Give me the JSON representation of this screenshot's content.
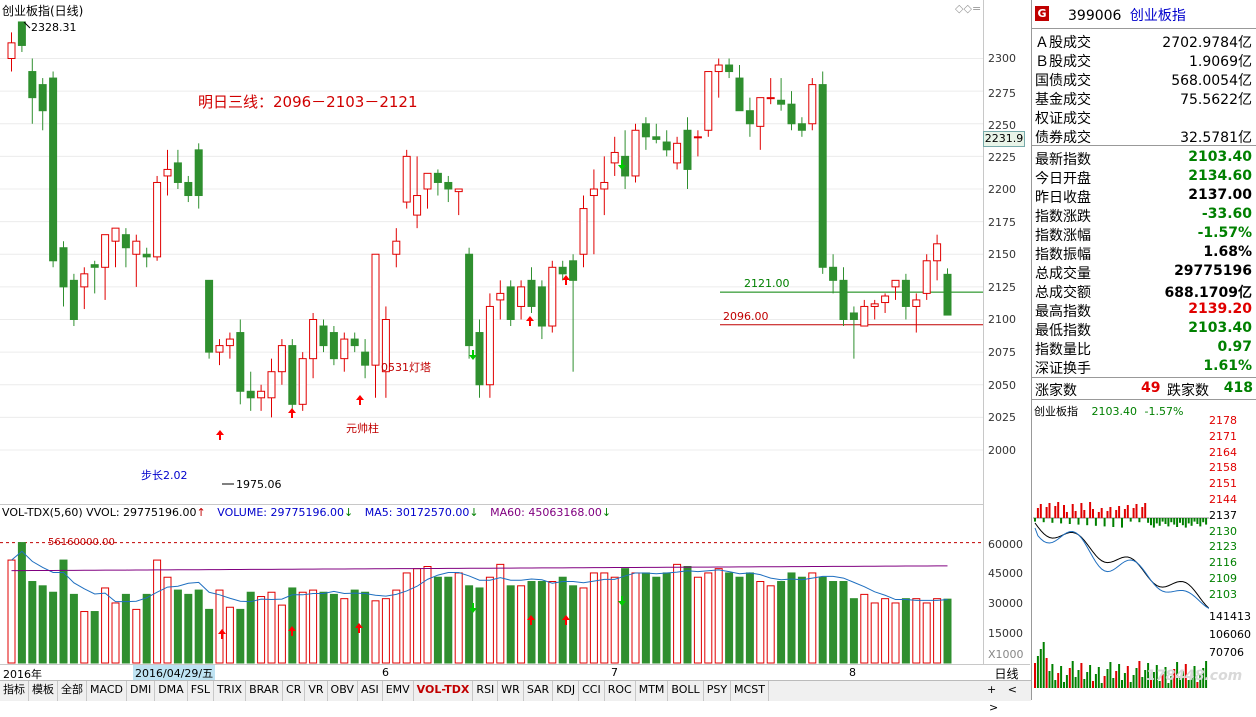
{
  "window": {
    "title": "创业板指(日线)",
    "controls": [
      "◇",
      "◇",
      "="
    ]
  },
  "main": {
    "price_axis_ticks": [
      "2300",
      "2275",
      "2250",
      "2225",
      "2200",
      "2175",
      "2150",
      "2125",
      "2100",
      "2075",
      "2050",
      "2025",
      "2000"
    ],
    "current_price_tag": "2231.9",
    "high_label": "2328.31",
    "low_label": "1975.06",
    "forecast_text": "明日三线：2096－2103－2121",
    "line_2121": "2121.00",
    "line_2096": "2096.00",
    "annotation_lamp": "0531灯塔",
    "annotation_pillar": "元帅柱",
    "step_text": "步长2.02"
  },
  "volume": {
    "header_label": "VOL-TDX(5,60) VVOL: 29775196.00",
    "header_volume": "VOLUME: 29775196.00",
    "header_ma5": "MA5: 30172570.00",
    "header_ma60": "MA60: 45063168.00",
    "level_label": "56160000.00",
    "axis_ticks": [
      "60000",
      "45000",
      "30000",
      "15000"
    ],
    "unit": "X1000",
    "colors": {
      "volume_label": "#0000cc",
      "ma5": "#0000cc",
      "ma60": "#800080"
    }
  },
  "date_axis": {
    "labels": [
      "2016年",
      "2016/04/29/五",
      "6",
      "7",
      "8"
    ],
    "period": "日线"
  },
  "toolbar": {
    "buttons": [
      "指标",
      "模板",
      "全部",
      "MACD",
      "DMI",
      "DMA",
      "FSL",
      "TRIX",
      "BRAR",
      "CR",
      "VR",
      "OBV",
      "ASI",
      "EMV",
      "VOL-TDX",
      "RSI",
      "WR",
      "SAR",
      "KDJ",
      "CCI",
      "ROC",
      "MTM",
      "BOLL",
      "PSY",
      "MCST"
    ],
    "active": "VOL-TDX",
    "nav": [
      "+",
      "<",
      ">"
    ]
  },
  "quote": {
    "badge": "G",
    "code": "399006",
    "name": "创业板指",
    "rows": [
      {
        "label": "Ａ股成交",
        "value": "2702.9784亿",
        "color": "#000"
      },
      {
        "label": "Ｂ股成交",
        "value": "1.9069亿",
        "color": "#000"
      },
      {
        "label": "国债成交",
        "value": "568.0054亿",
        "color": "#000"
      },
      {
        "label": "基金成交",
        "value": "75.5622亿",
        "color": "#000"
      },
      {
        "label": "权证成交",
        "value": "",
        "color": "#000"
      },
      {
        "label": "债券成交",
        "value": "32.5781亿",
        "color": "#000"
      },
      {
        "label": "最新指数",
        "value": "2103.40",
        "color": "#008000"
      },
      {
        "label": "今日开盘",
        "value": "2134.60",
        "color": "#008000"
      },
      {
        "label": "昨日收盘",
        "value": "2137.00",
        "color": "#000"
      },
      {
        "label": "指数涨跌",
        "value": "-33.60",
        "color": "#008000"
      },
      {
        "label": "指数涨幅",
        "value": "-1.57%",
        "color": "#008000"
      },
      {
        "label": "指数振幅",
        "value": "1.68%",
        "color": "#000"
      },
      {
        "label": "总成交量",
        "value": "29775196",
        "color": "#000"
      },
      {
        "label": "总成交额",
        "value": "688.1709亿",
        "color": "#000"
      },
      {
        "label": "最高指数",
        "value": "2139.20",
        "color": "#e00000"
      },
      {
        "label": "最低指数",
        "value": "2103.40",
        "color": "#008000"
      },
      {
        "label": "指数量比",
        "value": "0.97",
        "color": "#008000"
      },
      {
        "label": "深证换手",
        "value": "1.61%",
        "color": "#008000"
      }
    ],
    "breadth": {
      "up_label": "涨家数",
      "up": "49",
      "down_label": "跌家数",
      "down": "418"
    },
    "mini": {
      "name": "创业板指",
      "value": "2103.40",
      "pct": "-1.57%",
      "axis": [
        "2178",
        "2171",
        "2164",
        "2158",
        "2151",
        "2144",
        "2137",
        "2130",
        "2123",
        "2116",
        "2109",
        "2103"
      ],
      "vol_axis": [
        "141413",
        "106060",
        "70706"
      ]
    },
    "watermark": "178448.com"
  },
  "chart_data": {
    "type": "candlestick",
    "title": "创业板指(日线)",
    "ylim": [
      1975,
      2330
    ],
    "series": [
      {
        "name": "OHLC",
        "values": [
          [
            2300,
            2320,
            2290,
            2312
          ],
          [
            2328,
            2328,
            2305,
            2310
          ],
          [
            2290,
            2300,
            2250,
            2270
          ],
          [
            2280,
            2285,
            2245,
            2260
          ],
          [
            2285,
            2290,
            2140,
            2145
          ],
          [
            2155,
            2160,
            2110,
            2125
          ],
          [
            2130,
            2135,
            2095,
            2100
          ],
          [
            2125,
            2140,
            2108,
            2135
          ],
          [
            2142,
            2145,
            2120,
            2140
          ],
          [
            2140,
            2165,
            2115,
            2165
          ],
          [
            2160,
            2170,
            2140,
            2170
          ],
          [
            2165,
            2170,
            2140,
            2155
          ],
          [
            2150,
            2165,
            2125,
            2160
          ],
          [
            2150,
            2155,
            2140,
            2148
          ],
          [
            2148,
            2210,
            2145,
            2205
          ],
          [
            2210,
            2230,
            2195,
            2215
          ],
          [
            2220,
            2230,
            2200,
            2205
          ],
          [
            2205,
            2210,
            2190,
            2195
          ],
          [
            2230,
            2235,
            2185,
            2195
          ],
          [
            2130,
            2130,
            2070,
            2075
          ],
          [
            2075,
            2085,
            2065,
            2080
          ],
          [
            2080,
            2090,
            2070,
            2085
          ],
          [
            2090,
            2100,
            2035,
            2045
          ],
          [
            2045,
            2060,
            2030,
            2040
          ],
          [
            2040,
            2050,
            2030,
            2045
          ],
          [
            2040,
            2070,
            2025,
            2060
          ],
          [
            2060,
            2085,
            2050,
            2080
          ],
          [
            2080,
            2085,
            2030,
            2035
          ],
          [
            2035,
            2075,
            2030,
            2070
          ],
          [
            2070,
            2105,
            2055,
            2100
          ],
          [
            2095,
            2100,
            2075,
            2080
          ],
          [
            2090,
            2095,
            2065,
            2070
          ],
          [
            2070,
            2090,
            2060,
            2085
          ],
          [
            2085,
            2090,
            2075,
            2080
          ],
          [
            2075,
            2085,
            2055,
            2065
          ],
          [
            2065,
            2115,
            2040,
            2150
          ],
          [
            2060,
            2110,
            2040,
            2100
          ],
          [
            2150,
            2170,
            2140,
            2160
          ],
          [
            2190,
            2230,
            2185,
            2225
          ],
          [
            2180,
            2225,
            2170,
            2195
          ],
          [
            2200,
            2210,
            2185,
            2212
          ],
          [
            2212,
            2215,
            2195,
            2205
          ],
          [
            2205,
            2210,
            2190,
            2200
          ],
          [
            2198,
            2200,
            2180,
            2200
          ],
          [
            2150,
            2155,
            2070,
            2080
          ],
          [
            2090,
            2100,
            2040,
            2050
          ],
          [
            2050,
            2120,
            2040,
            2110
          ],
          [
            2115,
            2130,
            2100,
            2120
          ],
          [
            2125,
            2130,
            2095,
            2100
          ],
          [
            2110,
            2130,
            2100,
            2125
          ],
          [
            2130,
            2140,
            2105,
            2110
          ],
          [
            2125,
            2130,
            2085,
            2095
          ],
          [
            2095,
            2145,
            2090,
            2140
          ],
          [
            2140,
            2145,
            2130,
            2135
          ],
          [
            2145,
            2150,
            2060,
            2130
          ],
          [
            2150,
            2195,
            2140,
            2185
          ],
          [
            2195,
            2215,
            2150,
            2200
          ],
          [
            2200,
            2225,
            2180,
            2205
          ],
          [
            2220,
            2240,
            2210,
            2228
          ],
          [
            2225,
            2245,
            2200,
            2210
          ],
          [
            2210,
            2250,
            2205,
            2245
          ],
          [
            2250,
            2255,
            2230,
            2240
          ],
          [
            2240,
            2250,
            2235,
            2238
          ],
          [
            2236,
            2245,
            2225,
            2230
          ],
          [
            2220,
            2240,
            2215,
            2235
          ],
          [
            2245,
            2255,
            2200,
            2215
          ],
          [
            2240,
            2245,
            2225,
            2240
          ],
          [
            2245,
            2280,
            2240,
            2290
          ],
          [
            2290,
            2300,
            2270,
            2295
          ],
          [
            2295,
            2300,
            2285,
            2290
          ],
          [
            2285,
            2295,
            2260,
            2260
          ],
          [
            2260,
            2270,
            2240,
            2250
          ],
          [
            2248,
            2268,
            2230,
            2270
          ],
          [
            2270,
            2285,
            2265,
            2270
          ],
          [
            2268,
            2285,
            2260,
            2265
          ],
          [
            2265,
            2275,
            2245,
            2250
          ],
          [
            2250,
            2255,
            2240,
            2245
          ],
          [
            2250,
            2285,
            2245,
            2280
          ],
          [
            2280,
            2290,
            2135,
            2140
          ],
          [
            2140,
            2150,
            2120,
            2130
          ],
          [
            2130,
            2140,
            2095,
            2100
          ],
          [
            2105,
            2110,
            2070,
            2100
          ],
          [
            2095,
            2115,
            2095,
            2110
          ],
          [
            2110,
            2115,
            2100,
            2112
          ],
          [
            2113,
            2120,
            2105,
            2118
          ],
          [
            2125,
            2130,
            2115,
            2130
          ],
          [
            2130,
            2135,
            2100,
            2110
          ],
          [
            2110,
            2120,
            2090,
            2115
          ],
          [
            2120,
            2150,
            2115,
            2145
          ],
          [
            2145,
            2165,
            2130,
            2158
          ],
          [
            2134.6,
            2139.2,
            2103.4,
            2103.4
          ]
        ]
      }
    ],
    "overlay_lines": [
      {
        "label": "2121.00",
        "value": 2121
      },
      {
        "label": "2096.00",
        "value": 2096
      }
    ],
    "volume": {
      "unit": "X1000",
      "ylim": [
        0,
        70000
      ],
      "values": [
        48000,
        56160,
        38000,
        36000,
        33000,
        48000,
        32000,
        24000,
        24000,
        35000,
        28000,
        32000,
        25000,
        32000,
        48000,
        40000,
        34000,
        32000,
        34000,
        25000,
        34000,
        26000,
        25000,
        33000,
        31000,
        33000,
        27000,
        35000,
        33000,
        34000,
        33000,
        32000,
        30000,
        34000,
        33000,
        29000,
        30000,
        34000,
        42000,
        44000,
        45000,
        40000,
        40000,
        42000,
        36000,
        35000,
        40000,
        46000,
        36000,
        36000,
        38000,
        38000,
        38000,
        40000,
        36000,
        35000,
        42000,
        42000,
        40000,
        44000,
        42000,
        42000,
        40000,
        42000,
        46000,
        45000,
        40000,
        42000,
        44000,
        42000,
        40000,
        42000,
        38000,
        36000,
        38000,
        42000,
        40000,
        42000,
        40000,
        38000,
        38000,
        30000,
        32000,
        28000,
        30000,
        28000,
        30000,
        30000,
        28000,
        30000,
        29775
      ],
      "ma5_last": 30172.57,
      "ma60_last": 45063.168
    }
  }
}
